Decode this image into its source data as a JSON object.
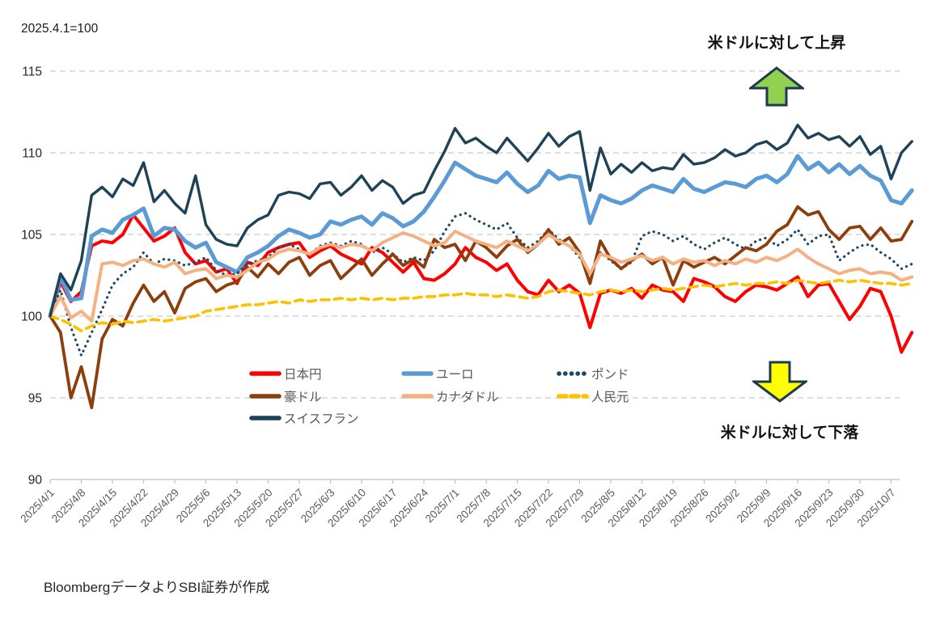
{
  "header": {
    "index_note": "2025.4.1=100"
  },
  "annotations": {
    "up_label": "米ドルに対して上昇",
    "down_label": "米ドルに対して下落",
    "up_arrow_fill": "#92D050",
    "down_arrow_fill": "#FFFF00",
    "arrow_stroke": "#1F3A50"
  },
  "footer": {
    "source": "BloombergデータよりSBI証券が作成"
  },
  "chart_data": {
    "type": "line",
    "title": "",
    "xlabel": "",
    "ylabel": "",
    "ylim": [
      90,
      115
    ],
    "yticks": [
      90,
      95,
      100,
      105,
      110,
      115
    ],
    "grid": "horizontal-dashed",
    "legend_position": "inside-bottom-center",
    "points_per_week": 3,
    "x_tick_labels": [
      "2025/4/1",
      "2025/4/8",
      "2025/4/15",
      "2025/4/22",
      "2025/4/29",
      "2025/5/6",
      "2025/5/13",
      "2025/5/20",
      "2025/5/27",
      "2025/6/3",
      "2025/6/10",
      "2025/6/17",
      "2025/6/24",
      "2025/7/1",
      "2025/7/8",
      "2025/7/15",
      "2025/7/22",
      "2025/7/29",
      "2025/8/5",
      "2025/8/12",
      "2025/8/19",
      "2025/8/26",
      "2025/9/2",
      "2025/9/9",
      "2025/9/16",
      "2025/9/23",
      "2025/9/30",
      "2025/10/7"
    ],
    "series": [
      {
        "id": "jpy",
        "name": "日本円",
        "color": "#FF0000",
        "style": "solid",
        "width": 4,
        "values": [
          100.0,
          102.1,
          100.9,
          101.5,
          104.3,
          104.6,
          104.5,
          105.0,
          106.2,
          105.4,
          104.6,
          104.9,
          105.4,
          103.9,
          103.2,
          103.4,
          102.7,
          102.9,
          102.0,
          103.3,
          103.1,
          103.9,
          104.2,
          104.4,
          104.5,
          103.6,
          104.0,
          104.3,
          103.8,
          103.5,
          103.2,
          104.2,
          103.9,
          103.3,
          102.7,
          103.3,
          102.3,
          102.2,
          102.6,
          103.2,
          104.2,
          103.6,
          103.3,
          102.8,
          103.2,
          102.2,
          101.5,
          101.3,
          102.2,
          101.5,
          101.9,
          101.4,
          99.3,
          101.4,
          101.6,
          101.4,
          101.7,
          101.1,
          101.9,
          101.6,
          101.5,
          100.9,
          102.3,
          102.1,
          101.8,
          101.2,
          100.9,
          101.5,
          101.9,
          101.8,
          101.6,
          102.0,
          102.4,
          101.2,
          101.9,
          102.0,
          100.9,
          99.8,
          100.6,
          101.7,
          101.5,
          100.0,
          97.8,
          99.0
        ]
      },
      {
        "id": "eur",
        "name": "ユーロ",
        "color": "#5B9BD5",
        "style": "solid",
        "width": 5,
        "values": [
          100.0,
          102.4,
          101.0,
          101.1,
          104.9,
          105.3,
          105.1,
          105.9,
          106.2,
          106.6,
          104.9,
          105.4,
          105.3,
          104.6,
          104.2,
          104.5,
          103.3,
          103.0,
          102.7,
          103.6,
          103.9,
          104.3,
          104.9,
          105.3,
          105.1,
          104.8,
          105.0,
          105.8,
          105.6,
          105.9,
          106.1,
          105.6,
          106.3,
          106.0,
          105.5,
          105.8,
          106.4,
          107.3,
          108.3,
          109.4,
          109.0,
          108.6,
          108.4,
          108.2,
          108.8,
          108.1,
          107.6,
          108.0,
          108.9,
          108.4,
          108.6,
          108.5,
          105.7,
          107.4,
          107.1,
          106.9,
          107.2,
          107.7,
          108.0,
          107.8,
          107.6,
          108.4,
          107.8,
          107.6,
          107.9,
          108.2,
          108.1,
          107.9,
          108.4,
          108.6,
          108.2,
          108.7,
          109.8,
          109.0,
          109.4,
          108.8,
          109.3,
          108.7,
          109.2,
          108.6,
          108.3,
          107.1,
          106.9,
          107.7
        ]
      },
      {
        "id": "gbp",
        "name": "ポンド",
        "color": "#1C4966",
        "style": "dotted",
        "width": 3.2,
        "values": [
          100.0,
          101.6,
          99.3,
          97.6,
          99.0,
          100.4,
          101.9,
          102.6,
          103.0,
          103.9,
          103.2,
          103.5,
          103.4,
          103.1,
          103.3,
          103.6,
          102.8,
          102.5,
          102.6,
          103.2,
          103.4,
          103.6,
          104.2,
          104.4,
          104.1,
          103.8,
          104.3,
          104.5,
          104.3,
          104.6,
          104.4,
          103.9,
          104.2,
          103.8,
          103.3,
          103.6,
          103.4,
          104.0,
          105.2,
          106.1,
          106.3,
          105.9,
          105.6,
          105.3,
          105.7,
          104.8,
          104.2,
          104.6,
          105.3,
          104.7,
          104.3,
          103.6,
          102.6,
          103.9,
          103.4,
          102.9,
          103.3,
          104.9,
          105.2,
          105.0,
          104.6,
          104.9,
          104.4,
          104.1,
          104.5,
          104.8,
          104.4,
          104.1,
          104.6,
          104.8,
          104.3,
          104.7,
          105.3,
          104.4,
          104.9,
          105.0,
          103.4,
          103.9,
          104.3,
          104.4,
          103.9,
          103.5,
          102.9,
          103.2
        ]
      },
      {
        "id": "aud",
        "name": "豪ドル",
        "color": "#8D3E0C",
        "style": "solid",
        "width": 3.8,
        "values": [
          100.0,
          99.0,
          95.0,
          96.9,
          94.4,
          98.6,
          99.8,
          99.4,
          100.8,
          101.9,
          100.9,
          101.5,
          100.2,
          101.7,
          102.1,
          102.3,
          101.5,
          101.9,
          102.1,
          103.0,
          102.4,
          103.2,
          102.6,
          103.3,
          103.6,
          102.5,
          103.1,
          103.4,
          102.3,
          102.9,
          103.5,
          102.5,
          103.2,
          103.8,
          103.1,
          103.5,
          103.0,
          104.7,
          104.2,
          104.4,
          103.4,
          104.6,
          104.2,
          103.6,
          104.3,
          104.7,
          103.9,
          104.4,
          105.3,
          104.4,
          104.8,
          103.9,
          102.0,
          104.6,
          103.5,
          102.9,
          103.4,
          103.8,
          103.2,
          103.6,
          101.9,
          103.4,
          103.0,
          103.3,
          103.6,
          103.2,
          103.7,
          104.2,
          104.0,
          104.4,
          105.2,
          105.6,
          106.7,
          106.2,
          106.4,
          105.3,
          104.7,
          105.4,
          105.5,
          104.7,
          105.4,
          104.6,
          104.7,
          105.8
        ]
      },
      {
        "id": "cad",
        "name": "カナダドル",
        "color": "#F4B183",
        "style": "solid",
        "width": 4,
        "values": [
          100.0,
          101.2,
          99.9,
          100.3,
          99.7,
          103.2,
          103.3,
          103.1,
          103.4,
          103.5,
          103.2,
          103.0,
          103.3,
          102.6,
          102.8,
          102.9,
          102.3,
          102.5,
          102.4,
          102.8,
          103.3,
          103.5,
          103.9,
          104.1,
          104.0,
          103.8,
          104.2,
          104.4,
          104.2,
          104.4,
          104.3,
          104.0,
          104.5,
          104.8,
          105.1,
          104.9,
          104.6,
          104.3,
          104.5,
          105.2,
          104.9,
          104.6,
          104.4,
          104.2,
          104.6,
          104.3,
          104.0,
          104.4,
          105.0,
          104.6,
          104.3,
          103.8,
          102.6,
          103.8,
          103.6,
          103.3,
          103.5,
          103.7,
          103.4,
          103.6,
          103.2,
          103.5,
          103.3,
          103.4,
          103.1,
          103.4,
          103.2,
          103.5,
          103.3,
          103.6,
          103.4,
          103.7,
          104.1,
          103.6,
          103.2,
          102.9,
          102.6,
          102.8,
          102.9,
          102.6,
          102.7,
          102.6,
          102.2,
          102.4
        ]
      },
      {
        "id": "cny",
        "name": "人民元",
        "color": "#FFC000",
        "style": "dashed",
        "width": 3.6,
        "values": [
          100.0,
          99.8,
          99.5,
          99.1,
          99.4,
          99.6,
          99.5,
          99.7,
          99.6,
          99.7,
          99.8,
          99.7,
          99.8,
          99.9,
          100.0,
          100.3,
          100.4,
          100.5,
          100.6,
          100.7,
          100.7,
          100.8,
          100.9,
          100.8,
          101.0,
          100.9,
          101.0,
          101.0,
          101.1,
          101.0,
          101.1,
          101.0,
          101.1,
          101.0,
          101.1,
          101.1,
          101.2,
          101.2,
          101.3,
          101.3,
          101.4,
          101.3,
          101.3,
          101.2,
          101.3,
          101.2,
          101.1,
          101.2,
          101.5,
          101.6,
          101.5,
          101.4,
          101.3,
          101.5,
          101.6,
          101.5,
          101.6,
          101.5,
          101.6,
          101.7,
          101.6,
          101.7,
          101.8,
          101.9,
          101.8,
          101.9,
          102.0,
          101.9,
          102.0,
          102.0,
          102.1,
          102.0,
          102.2,
          102.1,
          102.0,
          102.1,
          102.2,
          102.1,
          102.2,
          102.1,
          102.0,
          102.0,
          101.9,
          102.0
        ]
      },
      {
        "id": "chf",
        "name": "スイスフラン",
        "color": "#1E4257",
        "style": "solid",
        "width": 3.4,
        "values": [
          100.0,
          102.6,
          101.6,
          103.4,
          107.4,
          107.9,
          107.3,
          108.4,
          108.0,
          109.4,
          107.0,
          107.7,
          106.9,
          106.3,
          108.6,
          105.6,
          104.7,
          104.4,
          104.3,
          105.4,
          105.9,
          106.2,
          107.4,
          107.6,
          107.5,
          107.2,
          108.1,
          108.2,
          107.4,
          107.9,
          108.6,
          107.7,
          108.3,
          107.9,
          106.9,
          107.4,
          107.6,
          108.9,
          110.1,
          111.5,
          110.6,
          110.9,
          110.4,
          110.0,
          110.9,
          110.2,
          109.5,
          110.3,
          111.2,
          110.4,
          111.0,
          111.3,
          107.7,
          110.3,
          108.7,
          109.3,
          108.8,
          109.4,
          108.9,
          109.1,
          109.0,
          109.9,
          109.3,
          109.4,
          109.7,
          110.2,
          109.8,
          110.0,
          110.5,
          110.7,
          110.2,
          110.6,
          111.7,
          110.9,
          111.2,
          110.8,
          111.0,
          110.4,
          111.0,
          109.9,
          110.4,
          108.4,
          110.0,
          110.7
        ]
      }
    ],
    "axis_colors": {
      "gridline": "#C9C9C9",
      "axis_line": "#BFBFBF",
      "x_label": "#595959",
      "y_label": "#262626"
    }
  }
}
